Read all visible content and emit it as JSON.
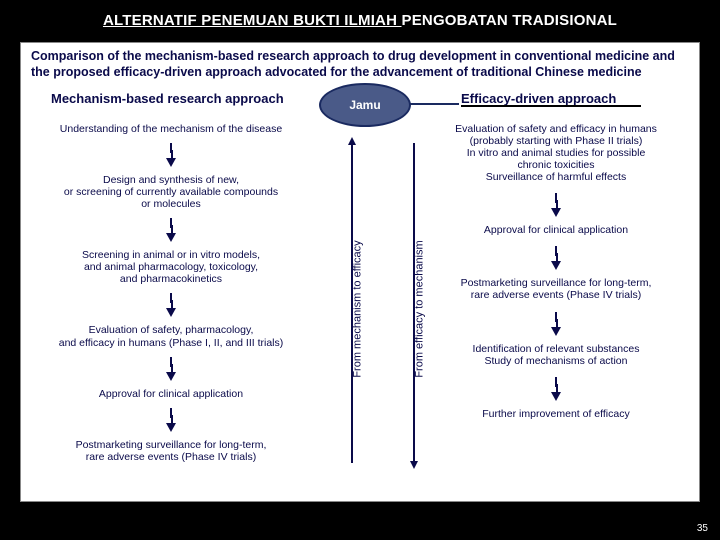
{
  "slide_title_part1": "ALTERNATIF PENEMUAN BUKTI ILMIAH ",
  "slide_title_part2": "PENGOBATAN TRADISIONAL",
  "comparison_title": "Comparison of the mechanism-based research approach to drug development in conventional medicine and the proposed efficacy-driven approach advocated for the advancement of traditional Chinese medicine",
  "left_heading": "Mechanism-based research approach",
  "right_heading": "Efficacy-driven approach",
  "jamu_label": "Jamu",
  "left_steps": [
    "Understanding of the mechanism of the disease",
    "Design and synthesis of new,\nor screening of currently available compounds\nor molecules",
    "Screening in animal or in vitro models,\nand animal pharmacology, toxicology,\nand pharmacokinetics",
    "Evaluation of safety, pharmacology,\nand efficacy in humans (Phase I, II, and III trials)",
    "Approval for clinical application",
    "Postmarketing surveillance for long-term,\nrare adverse events (Phase IV trials)"
  ],
  "right_steps": [
    "Evaluation of safety and efficacy in humans\n(probably starting with Phase II trials)\nIn vitro and animal studies for possible\nchronic toxicities\nSurveillance of harmful effects",
    "Approval for clinical application",
    "Postmarketing surveillance for long-term,\nrare adverse events (Phase IV trials)",
    "Identification of relevant substances\nStudy of mechanisms of action",
    "Further improvement of efficacy"
  ],
  "vlabel_left": "From mechanism to efficacy",
  "vlabel_right": "From efficacy to mechanism",
  "page_number": "35",
  "colors": {
    "background": "#000000",
    "panel": "#ffffff",
    "text_dark": "#0a0a4a",
    "jamu_fill": "#4a5a88",
    "jamu_border": "#1a2a60"
  }
}
